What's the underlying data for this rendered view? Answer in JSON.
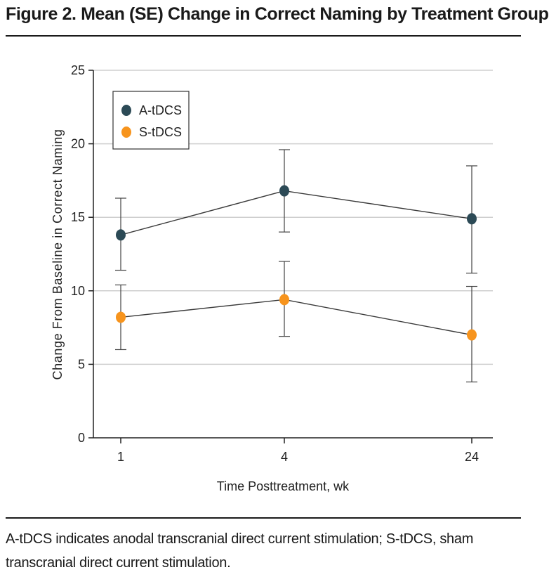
{
  "figure": {
    "title": "Figure 2. Mean (SE) Change in Correct Naming by Treatment Group",
    "caption": "A-tDCS indicates anodal transcranial direct current stimulation; S-tDCS, sham transcranial direct current stimulation."
  },
  "chart_data": {
    "type": "line",
    "xlabel": "Time Posttreatment, wk",
    "ylabel": "Change From Baseline in Correct Naming",
    "categories": [
      "1",
      "4",
      "24"
    ],
    "ylim": [
      0,
      25
    ],
    "yticks": [
      0,
      5,
      10,
      15,
      20,
      25
    ],
    "grid": true,
    "legend_position": "top-left",
    "series": [
      {
        "name": "A-tDCS",
        "color": "#2c4a56",
        "values": [
          13.8,
          16.8,
          14.9
        ],
        "error_low": [
          11.4,
          14.0,
          11.2
        ],
        "error_high": [
          16.3,
          19.6,
          18.5
        ]
      },
      {
        "name": "S-tDCS",
        "color": "#f7941d",
        "values": [
          8.2,
          9.4,
          7.0
        ],
        "error_low": [
          6.0,
          6.9,
          3.8
        ],
        "error_high": [
          10.4,
          12.0,
          10.3
        ]
      }
    ]
  },
  "colors": {
    "grid": "#cfcfcf",
    "axis": "#222222",
    "line": "#3a3a3a"
  }
}
